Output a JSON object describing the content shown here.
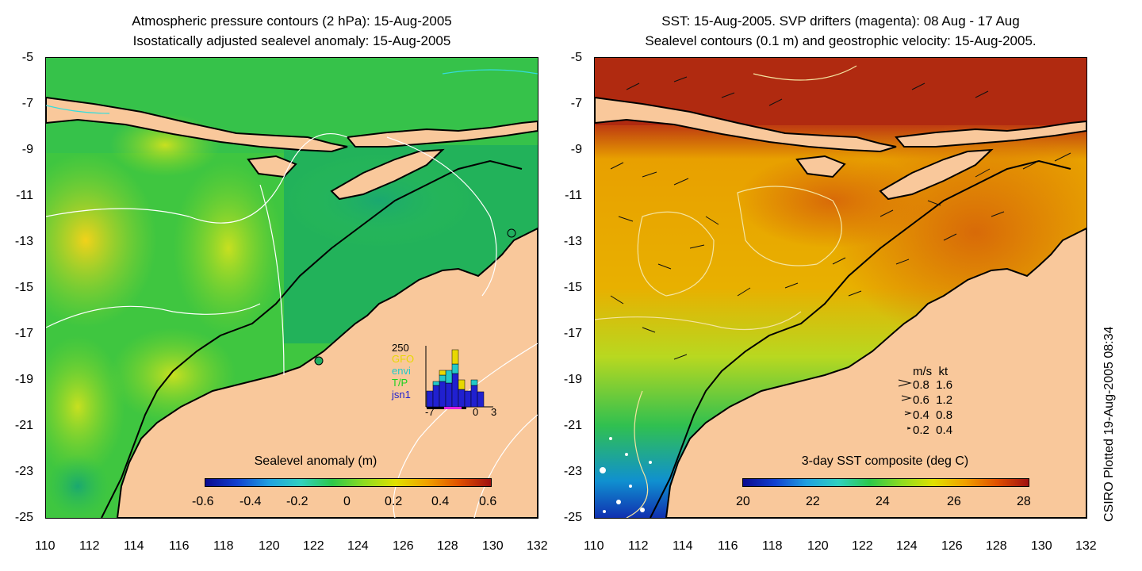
{
  "left_panel": {
    "title_line1": "Atmospheric pressure contours (2 hPa): 15-Aug-2005",
    "title_line2": "Isostatically adjusted sealevel anomaly: 15-Aug-2005",
    "colorbar_title": "Sealevel anomaly (m)",
    "colorbar_labels": [
      "-0.6",
      "-0.4",
      "-0.2",
      "0",
      "0.2",
      "0.4",
      "0.6"
    ],
    "inset": {
      "ymax_label": "250",
      "sources": [
        {
          "name": "GFO",
          "color": "#e8d800"
        },
        {
          "name": "envi",
          "color": "#22c8c8"
        },
        {
          "name": "T/P",
          "color": "#20d020"
        },
        {
          "name": "jsn1",
          "color": "#2020d0"
        }
      ],
      "xlabels": [
        "-7",
        "0",
        "3"
      ]
    }
  },
  "right_panel": {
    "title_line1": "SST: 15-Aug-2005. SVP drifters (magenta): 08 Aug - 17 Aug",
    "title_line2": "Sealevel contours (0.1 m) and geostrophic velocity: 15-Aug-2005.",
    "colorbar_title": "3-day SST composite (deg C)",
    "colorbar_labels": [
      "20",
      "22",
      "24",
      "26",
      "28"
    ],
    "speed_legend": {
      "header": "m/s  kt",
      "rows": [
        "0.8  1.6",
        "0.6  1.2",
        "0.4  0.8",
        "0.2  0.4"
      ]
    }
  },
  "axes": {
    "x_ticks": [
      "110",
      "112",
      "114",
      "116",
      "118",
      "120",
      "122",
      "124",
      "126",
      "128",
      "130",
      "132"
    ],
    "y_ticks": [
      "-5",
      "-7",
      "-9",
      "-11",
      "-13",
      "-15",
      "-17",
      "-19",
      "-21",
      "-23",
      "-25"
    ]
  },
  "credit": "CSIRO Plotted 19-Aug-2005 08:34",
  "colors": {
    "land": "#f9c89b",
    "sla_green": "#22cc44",
    "sst_hot": "#b22a10",
    "sst_warm": "#e88a00"
  }
}
